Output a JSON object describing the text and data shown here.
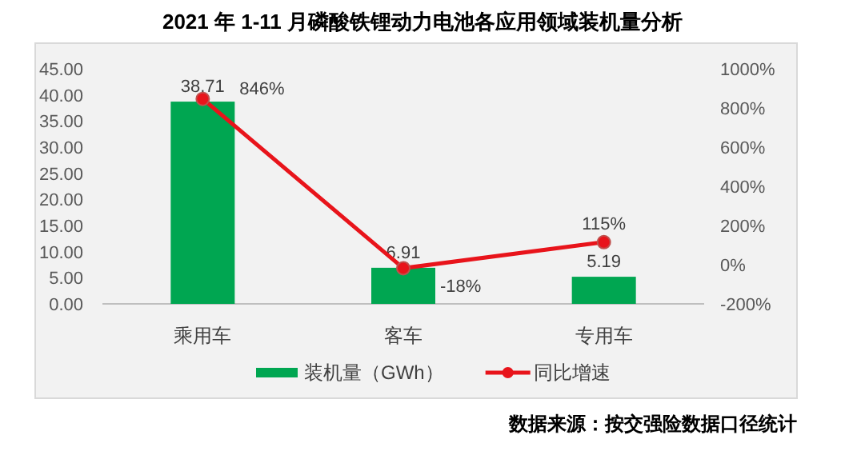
{
  "chart_data": {
    "type": "bar",
    "title": "2021 年 1-11 月磷酸铁锂动力电池各应用领域装机量分析",
    "categories": [
      "乘用车",
      "客车",
      "专用车"
    ],
    "series": [
      {
        "name": "装机量（GWh）",
        "color": "#00a651",
        "values": [
          38.71,
          6.91,
          5.19
        ],
        "value_labels": [
          "38.71",
          "6.91",
          "5.19"
        ]
      },
      {
        "name": "同比增速",
        "type": "line",
        "axis": "y2",
        "color": "#e8141b",
        "values": [
          846,
          -18,
          115
        ],
        "value_labels": [
          "846%",
          "-18%",
          "115%"
        ]
      }
    ],
    "ylim": [
      0,
      45
    ],
    "yticks": [
      {
        "value": 0,
        "label": "0.00"
      },
      {
        "value": 5,
        "label": "5.00"
      },
      {
        "value": 10,
        "label": "10.00"
      },
      {
        "value": 15,
        "label": "15.00"
      },
      {
        "value": 20,
        "label": "20.00"
      },
      {
        "value": 25,
        "label": "25.00"
      },
      {
        "value": 30,
        "label": "30.00"
      },
      {
        "value": 35,
        "label": "35.00"
      },
      {
        "value": 40,
        "label": "40.00"
      },
      {
        "value": 45,
        "label": "45.00"
      }
    ],
    "y2lim": [
      -200,
      1000
    ],
    "y2ticks": [
      {
        "value": -200,
        "label": "-200%"
      },
      {
        "value": 0,
        "label": "0%"
      },
      {
        "value": 200,
        "label": "200%"
      },
      {
        "value": 400,
        "label": "400%"
      },
      {
        "value": 600,
        "label": "600%"
      },
      {
        "value": 800,
        "label": "800%"
      },
      {
        "value": 1000,
        "label": "1000%"
      }
    ],
    "marker": "circle",
    "line_style": "solid",
    "legend": "bottom",
    "grid": false,
    "annotations": [
      "数据来源：按交强险数据口径统计"
    ]
  }
}
